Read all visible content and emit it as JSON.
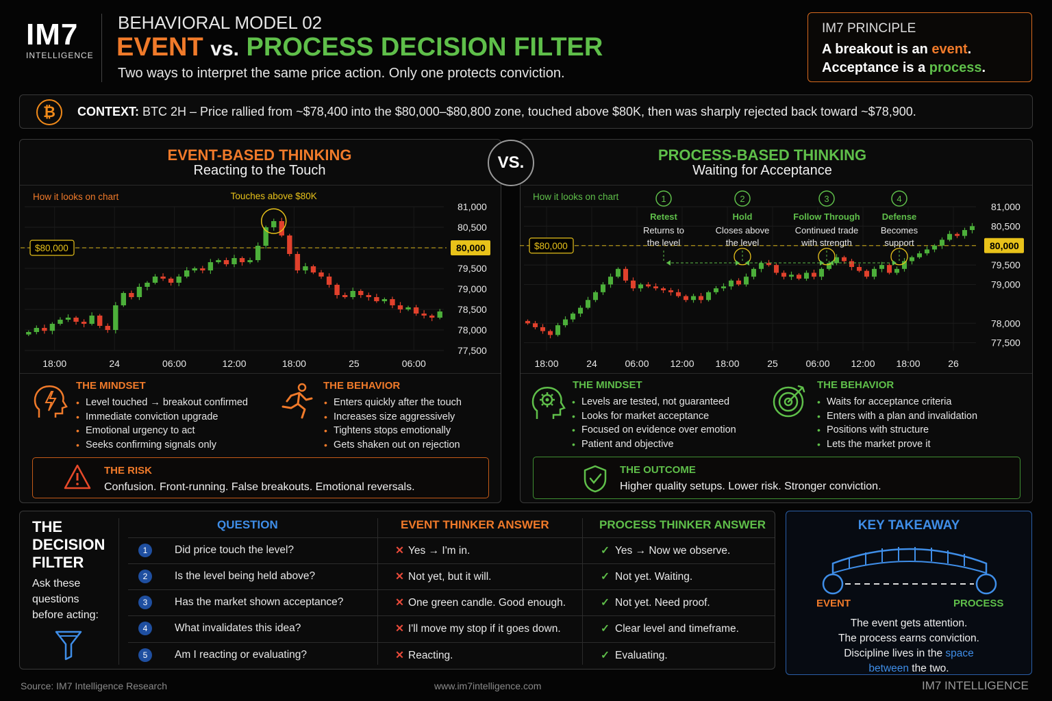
{
  "brand": {
    "logo": "IM7",
    "logo_sub": "INTELLIGENCE"
  },
  "header": {
    "kicker": "BEHAVIORAL MODEL 02",
    "title_event": "EVENT",
    "title_vs": "vs.",
    "title_process": "PROCESS DECISION FILTER",
    "subtitle": "Two ways to interpret the same price action. Only one protects conviction."
  },
  "principle": {
    "kicker": "IM7 PRINCIPLE",
    "line1_a": "A breakout is an ",
    "line1_b": "event",
    "line1_c": ".",
    "line2_a": "Acceptance is a ",
    "line2_b": "process",
    "line2_c": "."
  },
  "context": {
    "icon": "bitcoin-icon",
    "label": "CONTEXT:",
    "text": "BTC 2H – Price rallied from ~$78,400 into the $80,000–$80,800 zone, touched above $80K, then was sharply rejected back toward ~$78,900."
  },
  "vs_label": "VS.",
  "event_panel": {
    "title": "EVENT-BASED THINKING",
    "subtitle": "Reacting to the Touch",
    "chart_caption": "How it looks on chart",
    "annotation": "Touches above $80K",
    "level_tag": "$80,000",
    "mindset_title": "THE MINDSET",
    "mindset": [
      "Level touched → breakout confirmed",
      "Immediate conviction upgrade",
      "Emotional urgency to act",
      "Seeks confirming signals only"
    ],
    "behavior_title": "THE BEHAVIOR",
    "behavior": [
      "Enters quickly after the touch",
      "Increases size aggressively",
      "Tightens stops emotionally",
      "Gets shaken out on rejection"
    ],
    "risk_title": "THE RISK",
    "risk_text": "Confusion. Front-running. False breakouts. Emotional reversals."
  },
  "process_panel": {
    "title": "PROCESS-BASED THINKING",
    "subtitle": "Waiting for Acceptance",
    "chart_caption": "How it looks on chart",
    "level_tag": "$80,000",
    "steps": [
      {
        "n": "1",
        "title": "Retest",
        "l1": "Returns to",
        "l2": "the level"
      },
      {
        "n": "2",
        "title": "Hold",
        "l1": "Closes above",
        "l2": "the level"
      },
      {
        "n": "3",
        "title": "Follow Through",
        "l1": "Continued trade",
        "l2": "with strength"
      },
      {
        "n": "4",
        "title": "Defense",
        "l1": "Becomes",
        "l2": "support"
      }
    ],
    "mindset_title": "THE MINDSET",
    "mindset": [
      "Levels are tested, not guaranteed",
      "Looks for market acceptance",
      "Focused on evidence over emotion",
      "Patient and objective"
    ],
    "behavior_title": "THE BEHAVIOR",
    "behavior": [
      "Waits for acceptance criteria",
      "Enters with a plan and invalidation",
      "Positions with structure",
      "Lets the market prove it"
    ],
    "outcome_title": "THE OUTCOME",
    "outcome_text": "Higher quality setups. Lower risk. Stronger conviction."
  },
  "chart_data": [
    {
      "type": "candlestick",
      "title": "",
      "x_ticks": [
        "18:00",
        "24",
        "06:00",
        "12:00",
        "18:00",
        "25",
        "06:00"
      ],
      "y_ticks": [
        81000,
        80500,
        80000,
        79500,
        79000,
        78500,
        78000,
        77500
      ],
      "ylim": [
        77500,
        81000
      ],
      "highlight_level": 80000,
      "highlight_level_label": "80,000",
      "closes": [
        77950,
        78050,
        77980,
        78150,
        78250,
        78300,
        78200,
        78150,
        78350,
        78100,
        78000,
        78600,
        78900,
        78800,
        79050,
        79150,
        79300,
        79250,
        79150,
        79300,
        79450,
        79500,
        79450,
        79650,
        79700,
        79600,
        79750,
        79650,
        79700,
        80050,
        80500,
        80650,
        80300,
        79850,
        79450,
        79550,
        79400,
        79300,
        79100,
        78850,
        78800,
        78950,
        78850,
        78800,
        78700,
        78750,
        78600,
        78500,
        78550,
        78400,
        78350,
        78300,
        78450
      ]
    },
    {
      "type": "candlestick",
      "title": "",
      "x_ticks": [
        "18:00",
        "24",
        "06:00",
        "12:00",
        "18:00",
        "25",
        "06:00",
        "12:00",
        "18:00",
        "26"
      ],
      "y_ticks": [
        81000,
        80500,
        80000,
        79500,
        79000,
        78000,
        77500
      ],
      "ylim": [
        77300,
        81000
      ],
      "highlight_level": 80000,
      "highlight_level_label": "80,000",
      "closes": [
        78000,
        77900,
        77800,
        77700,
        77950,
        78100,
        78250,
        78400,
        78600,
        78800,
        79000,
        79200,
        79400,
        79100,
        78900,
        79000,
        78950,
        78900,
        78850,
        78800,
        78700,
        78600,
        78700,
        78600,
        78800,
        78900,
        78950,
        79100,
        79000,
        79200,
        79400,
        79550,
        79500,
        79300,
        79200,
        79250,
        79150,
        79300,
        79200,
        79400,
        79550,
        79700,
        79600,
        79450,
        79350,
        79200,
        79400,
        79500,
        79300,
        79400,
        79600,
        79700,
        79800,
        79900,
        80000,
        80150,
        80300,
        80250,
        80400,
        80500
      ]
    }
  ],
  "filter": {
    "title_l1": "THE",
    "title_l2": "DECISION",
    "title_l3": "FILTER",
    "ask_l1": "Ask these",
    "ask_l2": "questions",
    "ask_l3": "before acting:",
    "col_q": "QUESTION",
    "col_e": "EVENT THINKER ANSWER",
    "col_p": "PROCESS THINKER ANSWER",
    "rows": [
      {
        "n": "1",
        "q": "Did price touch the level?",
        "e": "Yes → I'm in.",
        "p": "Yes → Now we observe."
      },
      {
        "n": "2",
        "q": "Is the level being held above?",
        "e": "Not yet, but it will.",
        "p": "Not yet. Waiting."
      },
      {
        "n": "3",
        "q": "Has the market shown acceptance?",
        "e": "One green candle. Good enough.",
        "p": "Not yet. Need proof."
      },
      {
        "n": "4",
        "q": "What invalidates this idea?",
        "e": "I'll move my stop if it goes down.",
        "p": "Clear level and timeframe."
      },
      {
        "n": "5",
        "q": "Am I reacting or evaluating?",
        "e": "Reacting.",
        "p": "Evaluating."
      }
    ]
  },
  "takeaway": {
    "title": "KEY TAKEAWAY",
    "left": "EVENT",
    "right": "PROCESS",
    "l1": "The event gets attention.",
    "l2": "The process earns conviction.",
    "l3_a": "Discipline lives in the ",
    "l3_b": "space",
    "l4_a": "between",
    "l4_b": " the two."
  },
  "footer": {
    "source": "Source: IM7 Intelligence Research",
    "url": "www.im7intelligence.com",
    "brand": "IM7 INTELLIGENCE"
  },
  "colors": {
    "orange": "#f07a2a",
    "green": "#5fbf4a",
    "blue": "#3f8ee8",
    "up": "#4caf3a",
    "down": "#e0412c",
    "level": "#e8c21a"
  }
}
